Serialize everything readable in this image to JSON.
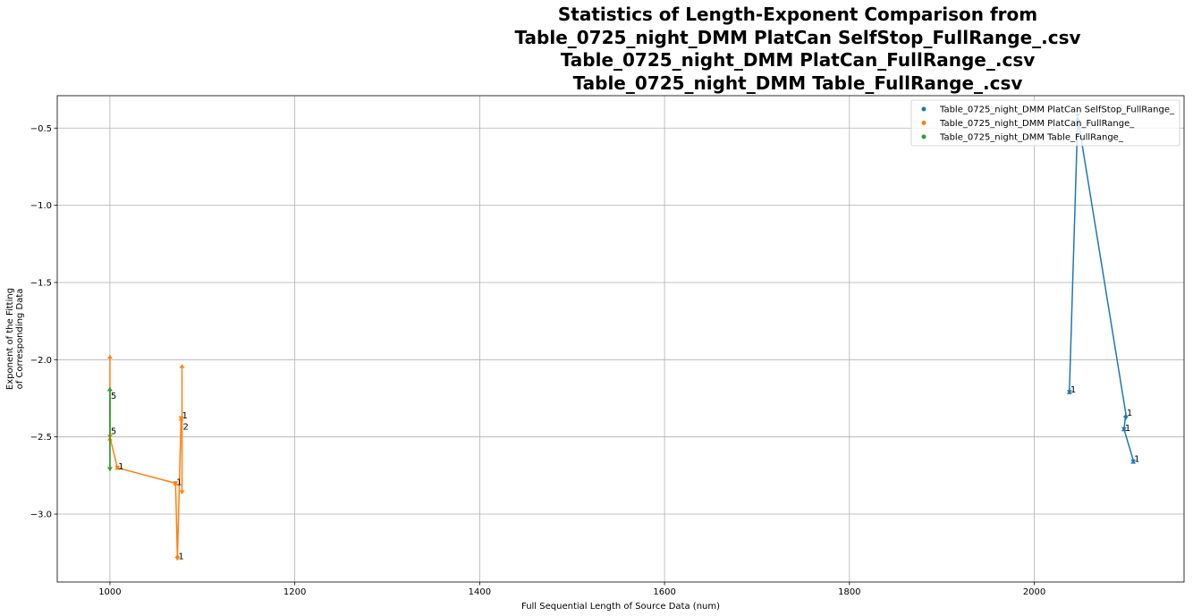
{
  "chart_data": {
    "type": "line",
    "title_lines": [
      "Statistics of Length-Exponent Comparison from",
      "Table_0725_night_DMM PlatCan SelfStop_FullRange_.csv",
      "Table_0725_night_DMM PlatCan_FullRange_.csv",
      "Table_0725_night_DMM Table_FullRange_.csv"
    ],
    "xlabel": "Full Sequential Length of Source Data (num)",
    "ylabel": [
      "Exponent of the Fitting",
      "of Corresponding Data"
    ],
    "xlim": [
      943,
      2162
    ],
    "ylim": [
      -3.44,
      -0.29
    ],
    "xticks": [
      1000,
      1200,
      1400,
      1600,
      1800,
      2000
    ],
    "xtick_labels": [
      "1000",
      "1200",
      "1400",
      "1600",
      "1800",
      "2000"
    ],
    "yticks": [
      -0.5,
      -1.0,
      -1.5,
      -2.0,
      -2.5,
      -3.0
    ],
    "ytick_labels": [
      "−0.5",
      "−1.0",
      "−1.5",
      "−2.0",
      "−2.5",
      "−3.0"
    ],
    "grid": true,
    "legend_position": "top-right",
    "series": [
      {
        "name": "Table_0725_night_DMM PlatCan SelfStop_FullRange_",
        "color": "#1f77b4",
        "x": [
          2038,
          2047,
          2099,
          2097,
          2107
        ],
        "y": [
          -2.2,
          -0.43,
          -2.35,
          -2.45,
          -2.65
        ],
        "error_low": [
          -2.22,
          -0.43,
          -2.39,
          -2.46,
          -2.67
        ],
        "error_high": [
          -2.2,
          -0.43,
          -2.35,
          -2.44,
          -2.65
        ],
        "annotations": [
          {
            "x": 2038,
            "y": -2.2,
            "text": "1"
          },
          {
            "x": 2099,
            "y": -2.35,
            "text": "1"
          },
          {
            "x": 2097,
            "y": -2.45,
            "text": "1"
          },
          {
            "x": 2107,
            "y": -2.65,
            "text": "1"
          }
        ]
      },
      {
        "name": "Table_0725_night_DMM PlatCan_FullRange_",
        "color": "#ff7f0e",
        "x": [
          1000,
          1000,
          1008,
          1071,
          1073,
          1077,
          1078
        ],
        "y": [
          -2.26,
          -2.5,
          -2.7,
          -2.8,
          -3.28,
          -2.37,
          -2.44
        ],
        "error_low": [
          -2.51,
          -2.51,
          -2.71,
          -2.81,
          -3.3,
          -2.39,
          -2.87
        ],
        "error_high": [
          -1.97,
          -2.5,
          -2.69,
          -2.79,
          -3.26,
          -2.37,
          -2.03
        ],
        "annotations": [
          {
            "x": 1008,
            "y": -2.7,
            "text": "1"
          },
          {
            "x": 1071,
            "y": -2.8,
            "text": "1"
          },
          {
            "x": 1073,
            "y": -3.28,
            "text": "1"
          },
          {
            "x": 1077,
            "y": -2.37,
            "text": "1"
          },
          {
            "x": 1078,
            "y": -2.44,
            "text": "2"
          }
        ]
      },
      {
        "name": "Table_0725_night_DMM Table_FullRange_",
        "color": "#2ca02c",
        "x": [
          1000,
          1000
        ],
        "y": [
          -2.47,
          -2.24
        ],
        "error_low": [
          -2.72,
          -2.72
        ],
        "error_high": [
          -2.18,
          -2.18
        ],
        "annotations": [
          {
            "x": 1000,
            "y": -2.24,
            "text": "5"
          },
          {
            "x": 1000,
            "y": -2.47,
            "text": "5"
          }
        ]
      }
    ]
  }
}
